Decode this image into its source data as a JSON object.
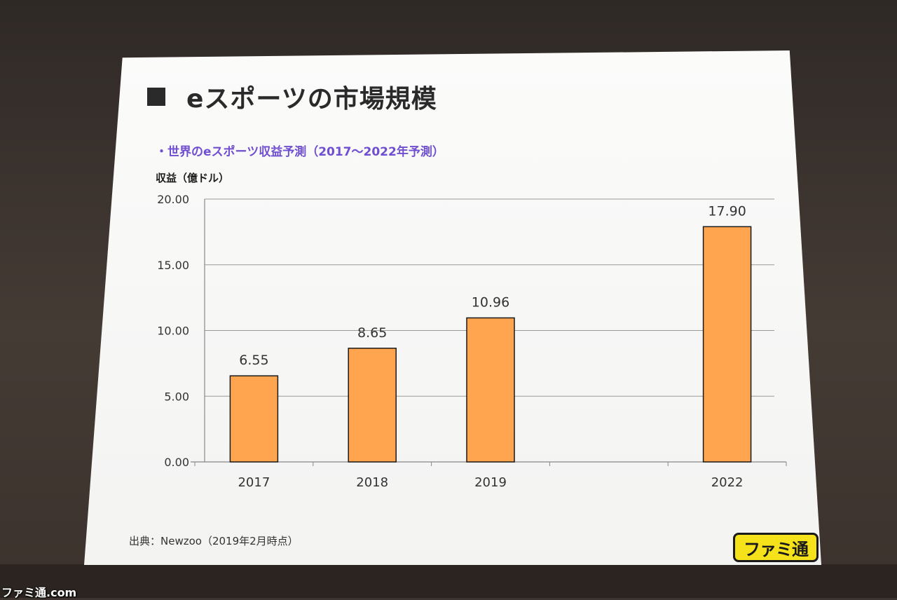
{
  "slide": {
    "title": "eスポーツの市場規模",
    "source": "出典：Newzoo（2019年2月時点）"
  },
  "logo": {
    "text": "ファミ通"
  },
  "watermark": {
    "text": "ファミ通.com"
  },
  "colors": {
    "bar_fill": "#FFA54F",
    "bar_stroke": "#1a1a1a",
    "subtitle": "#6F4FCF",
    "gridline": "#9a9a9a"
  },
  "chart_data": {
    "type": "bar",
    "title": "・世界のeスポーツ収益予測（2017〜2022年予測）",
    "ylabel": "収益（億ドル）",
    "xlabel": "",
    "categories": [
      "2017",
      "2018",
      "2019",
      "",
      "2022"
    ],
    "values": [
      6.55,
      8.65,
      10.96,
      null,
      17.9
    ],
    "data_labels": [
      "6.55",
      "8.65",
      "10.96",
      "",
      "17.90"
    ],
    "ylim": [
      0,
      20
    ],
    "yticks": [
      "0.00",
      "5.00",
      "10.00",
      "15.00",
      "20.00"
    ],
    "grid": true,
    "legend": "none"
  }
}
